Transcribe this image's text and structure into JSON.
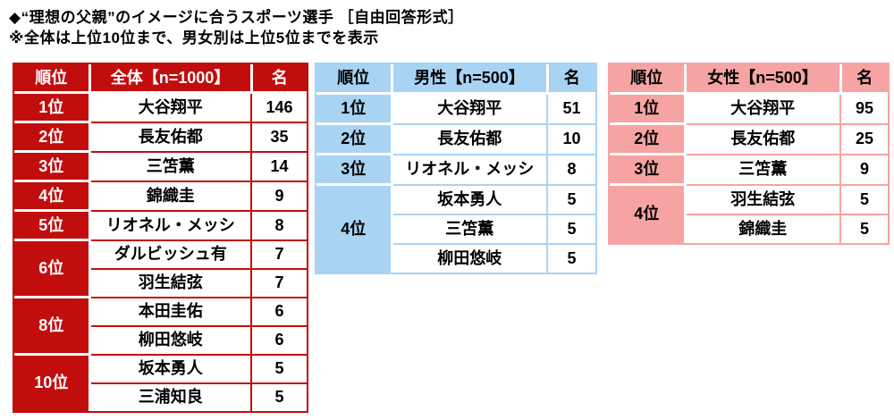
{
  "header": {
    "title": "◆“理想の父親”のイメージに合うスポーツ選手 ［自由回答形式］",
    "note": "※全体は上位10位まで、男女別は上位5位までを表示"
  },
  "columns": {
    "rank": "順位",
    "count": "名"
  },
  "colors": {
    "overall": "#C20D0D",
    "male": "#A9D3F3",
    "female": "#F6A4A3"
  },
  "tables": [
    {
      "name": "overall",
      "group_header": "全体【n=1000】",
      "rows": [
        {
          "rank": "1位",
          "name": "大谷翔平",
          "count": 146
        },
        {
          "rank": "2位",
          "name": "長友佑都",
          "count": 35
        },
        {
          "rank": "3位",
          "name": "三笘薫",
          "count": 14
        },
        {
          "rank": "4位",
          "name": "錦織圭",
          "count": 9
        },
        {
          "rank": "5位",
          "name": "リオネル・メッシ",
          "count": 8
        },
        {
          "rank": "6位",
          "rank_rowspan": 2,
          "name": "ダルビッシュ有",
          "count": 7
        },
        {
          "name": "羽生結弦",
          "count": 7
        },
        {
          "rank": "8位",
          "rank_rowspan": 2,
          "name": "本田圭佑",
          "count": 6
        },
        {
          "name": "柳田悠岐",
          "count": 6
        },
        {
          "rank": "10位",
          "rank_rowspan": 2,
          "name": "坂本勇人",
          "count": 5
        },
        {
          "name": "三浦知良",
          "count": 5
        }
      ]
    },
    {
      "name": "male",
      "group_header": "男性【n=500】",
      "rows": [
        {
          "rank": "1位",
          "name": "大谷翔平",
          "count": 51
        },
        {
          "rank": "2位",
          "name": "長友佑都",
          "count": 10
        },
        {
          "rank": "3位",
          "name": "リオネル・メッシ",
          "count": 8
        },
        {
          "rank": "4位",
          "rank_rowspan": 3,
          "name": "坂本勇人",
          "count": 5
        },
        {
          "name": "三笘薫",
          "count": 5
        },
        {
          "name": "柳田悠岐",
          "count": 5
        }
      ]
    },
    {
      "name": "female",
      "group_header": "女性【n=500】",
      "rows": [
        {
          "rank": "1位",
          "name": "大谷翔平",
          "count": 95
        },
        {
          "rank": "2位",
          "name": "長友佑都",
          "count": 25
        },
        {
          "rank": "3位",
          "name": "三笘薫",
          "count": 9
        },
        {
          "rank": "4位",
          "rank_rowspan": 2,
          "name": "羽生結弦",
          "count": 5
        },
        {
          "name": "錦織圭",
          "count": 5
        }
      ]
    }
  ]
}
